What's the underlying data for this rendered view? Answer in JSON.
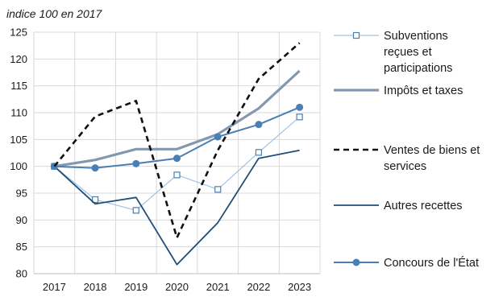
{
  "chart_data": {
    "type": "line",
    "title": "",
    "subtitle": "indice 100 en 2017",
    "xlabel": "",
    "ylabel": "",
    "categories": [
      "2017",
      "2018",
      "2019",
      "2020",
      "2021",
      "2022",
      "2023"
    ],
    "ylim": [
      80,
      125
    ],
    "yticks": [
      "80",
      "85",
      "90",
      "95",
      "100",
      "105",
      "110",
      "115",
      "120",
      "125"
    ],
    "grid": true,
    "legend_position": "right",
    "series": [
      {
        "name_lines": [
          "Subventions",
          "reçues et",
          "participations"
        ],
        "values": [
          100,
          93.8,
          91.8,
          98.4,
          95.7,
          102.6,
          109.2
        ],
        "color": "#9dc3e6",
        "style": "solid-square-markers"
      },
      {
        "name_lines": [
          "Impôts et taxes"
        ],
        "values": [
          100,
          101.2,
          103.2,
          103.2,
          106,
          110.8,
          117.8
        ],
        "color": "#8497b0",
        "style": "thick-solid"
      },
      {
        "name_lines": [
          "Ventes de biens et",
          "services"
        ],
        "values": [
          100,
          109.3,
          112.2,
          86.7,
          103,
          116.3,
          123
        ],
        "color": "#111111",
        "style": "dashed"
      },
      {
        "name_lines": [
          "Autres recettes"
        ],
        "values": [
          100,
          93,
          94.2,
          81.7,
          89.5,
          101.5,
          103
        ],
        "color": "#1f4e79",
        "style": "solid"
      },
      {
        "name_lines": [
          "Concours de l'État"
        ],
        "values": [
          100,
          99.7,
          100.5,
          101.5,
          105.5,
          107.8,
          111
        ],
        "color": "#4a7fb5",
        "style": "solid-circle-markers"
      }
    ]
  }
}
